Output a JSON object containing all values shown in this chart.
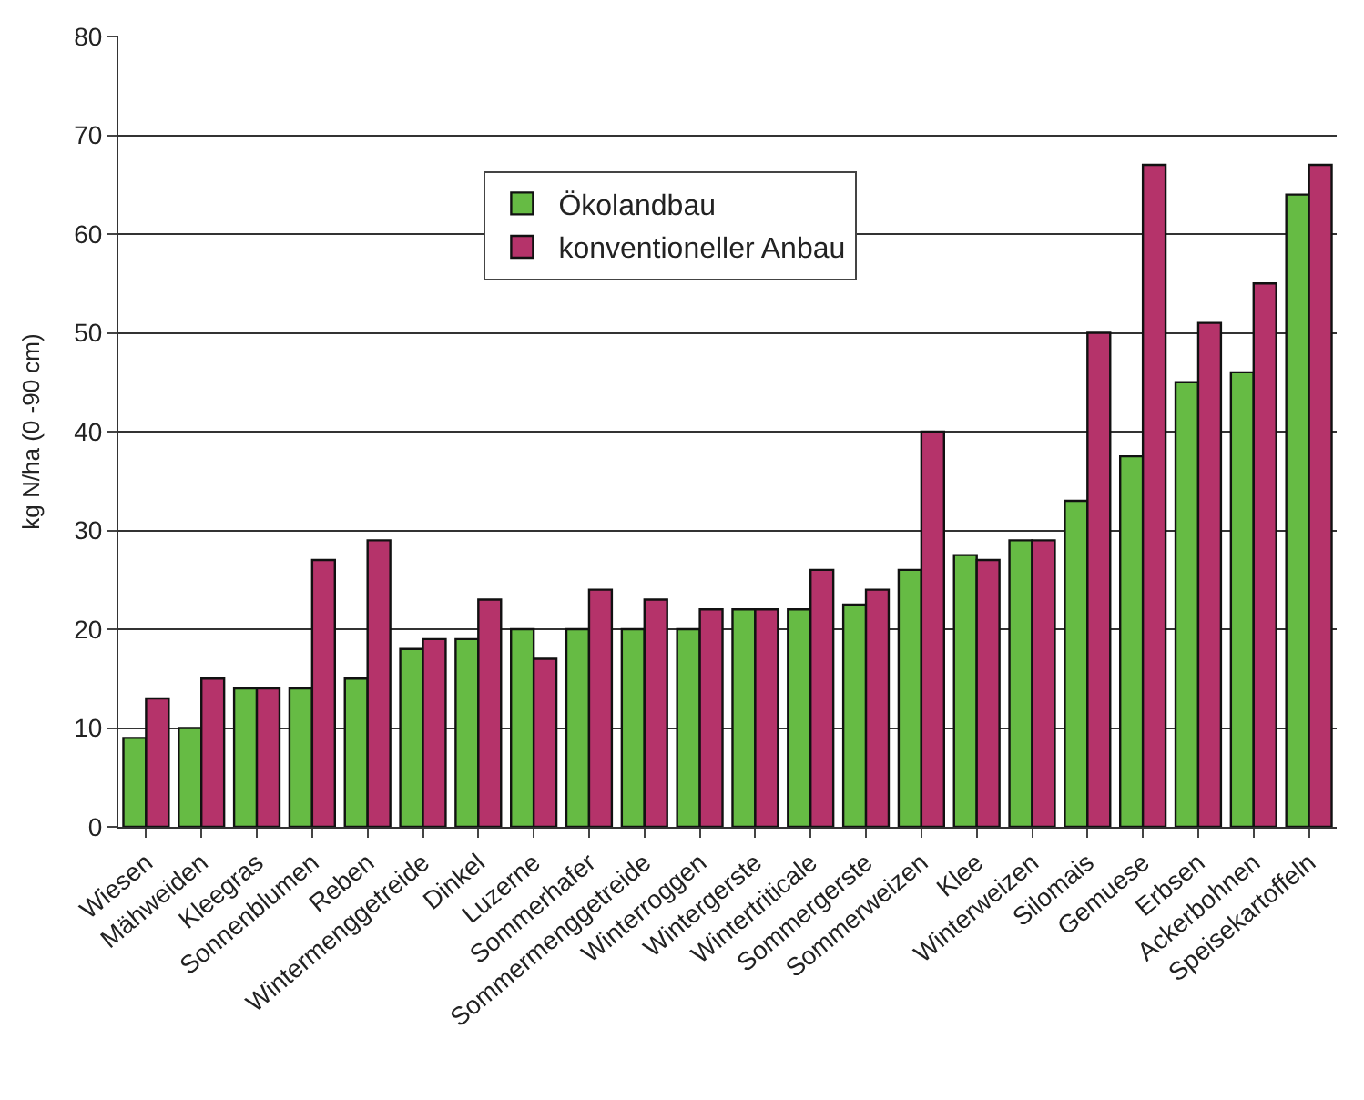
{
  "chart_data": {
    "type": "bar",
    "ylabel": "kg N/ha (0 -90 cm)",
    "categories": [
      "Wiesen",
      "Mähweiden",
      "Kleegras",
      "Sonnenblumen",
      "Reben",
      "Wintermenggetreide",
      "Dinkel",
      "Luzerne",
      "Sommerhafer",
      "Sommermenggetreide",
      "Winterroggen",
      "Wintergerste",
      "Wintertriticale",
      "Sommergerste",
      "Sommerweizen",
      "Klee",
      "Winterweizen",
      "Silomais",
      "Gemuese",
      "Erbsen",
      "Ackerbohnen",
      "Speisekartoffeln"
    ],
    "series": [
      {
        "name": "Ökolandbau",
        "color": "#66bb44",
        "values": [
          9,
          10,
          14,
          14,
          15,
          18,
          19,
          20,
          20,
          20,
          20,
          22,
          22,
          22.5,
          26,
          27.5,
          29,
          33,
          37.5,
          45,
          46,
          64
        ]
      },
      {
        "name": "konventioneller Anbau",
        "color": "#b5336a",
        "values": [
          13,
          15,
          14,
          27,
          29,
          19,
          23,
          17,
          24,
          23,
          22,
          22,
          26,
          24,
          40,
          27,
          29,
          50,
          67,
          51,
          55,
          67
        ]
      }
    ],
    "ylim": [
      0,
      80
    ],
    "yticks": [
      0,
      10,
      20,
      30,
      40,
      50,
      60,
      70,
      80
    ],
    "grid": "y",
    "legend": "top"
  }
}
